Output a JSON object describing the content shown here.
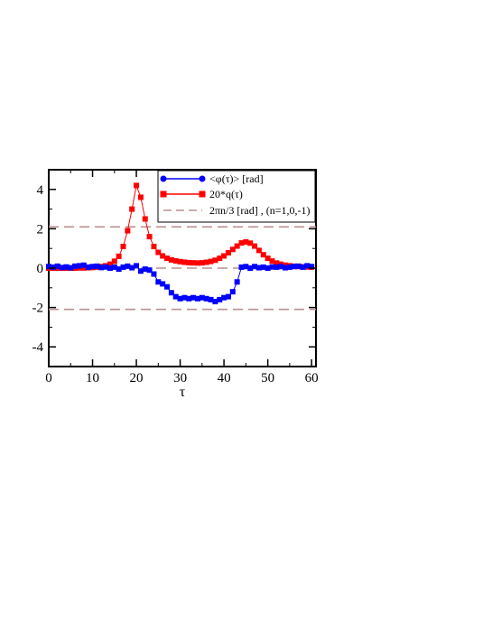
{
  "chart_data": {
    "type": "line",
    "title": "",
    "xlabel": "τ",
    "ylabel": "",
    "xlim": [
      0,
      61
    ],
    "ylim": [
      -5,
      5
    ],
    "xticks": [
      0,
      10,
      20,
      30,
      40,
      50,
      60
    ],
    "yticks": [
      -4,
      -2,
      0,
      2,
      4
    ],
    "xtick_labels": [
      "0",
      "10",
      "20",
      "30",
      "40",
      "50",
      "60"
    ],
    "ytick_labels": [
      "-4",
      "-2",
      "0",
      "2",
      "4"
    ],
    "grid": false,
    "legend_position": "top-right",
    "series": [
      {
        "name": "<φ(τ)> [rad]",
        "color": "#0000ff",
        "marker": "circle",
        "x": [
          0,
          1,
          2,
          3,
          4,
          5,
          6,
          7,
          8,
          9,
          10,
          11,
          12,
          13,
          14,
          15,
          16,
          17,
          18,
          19,
          20,
          21,
          22,
          23,
          24,
          25,
          26,
          27,
          28,
          29,
          30,
          31,
          32,
          33,
          34,
          35,
          36,
          37,
          38,
          39,
          40,
          41,
          42,
          43,
          44,
          45,
          46,
          47,
          48,
          49,
          50,
          51,
          52,
          53,
          54,
          55,
          56,
          57,
          58,
          59,
          60
        ],
        "values": [
          0.08,
          0.05,
          0.1,
          0.03,
          0.06,
          0.02,
          0.1,
          0.12,
          0.15,
          0.05,
          0.08,
          0.1,
          0.03,
          0.06,
          0.0,
          0.05,
          -0.05,
          0.05,
          0.1,
          0.02,
          0.12,
          -0.15,
          -0.05,
          -0.1,
          -0.3,
          -0.7,
          -0.8,
          -0.95,
          -1.25,
          -1.45,
          -1.55,
          -1.5,
          -1.55,
          -1.5,
          -1.55,
          -1.5,
          -1.55,
          -1.6,
          -1.7,
          -1.6,
          -1.5,
          -1.45,
          -1.2,
          -0.7,
          0.05,
          0.08,
          0.0,
          0.08,
          0.02,
          0.05,
          0.0,
          0.06,
          0.05,
          0.08,
          0.02,
          0.05,
          0.08,
          0.1,
          0.05,
          0.12,
          0.08
        ]
      },
      {
        "name": "20*q(τ)",
        "color": "#ff0000",
        "marker": "square",
        "x": [
          0,
          1,
          2,
          3,
          4,
          5,
          6,
          7,
          8,
          9,
          10,
          11,
          12,
          13,
          14,
          15,
          16,
          17,
          18,
          19,
          20,
          21,
          22,
          23,
          24,
          25,
          26,
          27,
          28,
          29,
          30,
          31,
          32,
          33,
          34,
          35,
          36,
          37,
          38,
          39,
          40,
          41,
          42,
          43,
          44,
          45,
          46,
          47,
          48,
          49,
          50,
          51,
          52,
          53,
          54,
          55,
          56,
          57,
          58,
          59,
          60
        ],
        "values": [
          0.0,
          0.0,
          0.0,
          0.0,
          0.0,
          0.0,
          0.0,
          0.01,
          0.01,
          0.02,
          0.03,
          0.05,
          0.08,
          0.12,
          0.2,
          0.35,
          0.6,
          1.1,
          1.9,
          3.0,
          4.2,
          3.6,
          2.5,
          1.6,
          1.1,
          0.8,
          0.62,
          0.5,
          0.42,
          0.37,
          0.33,
          0.3,
          0.28,
          0.27,
          0.26,
          0.27,
          0.3,
          0.34,
          0.4,
          0.5,
          0.62,
          0.78,
          0.95,
          1.12,
          1.28,
          1.33,
          1.27,
          1.12,
          0.9,
          0.68,
          0.5,
          0.36,
          0.26,
          0.2,
          0.15,
          0.12,
          0.1,
          0.08,
          0.07,
          0.06,
          0.05
        ]
      },
      {
        "name": "2πn/3 [rad] , (n=1,0,-1)",
        "color": "#bc8f8f",
        "dashed": true,
        "levels": [
          2.094,
          0,
          -2.094
        ]
      }
    ]
  }
}
